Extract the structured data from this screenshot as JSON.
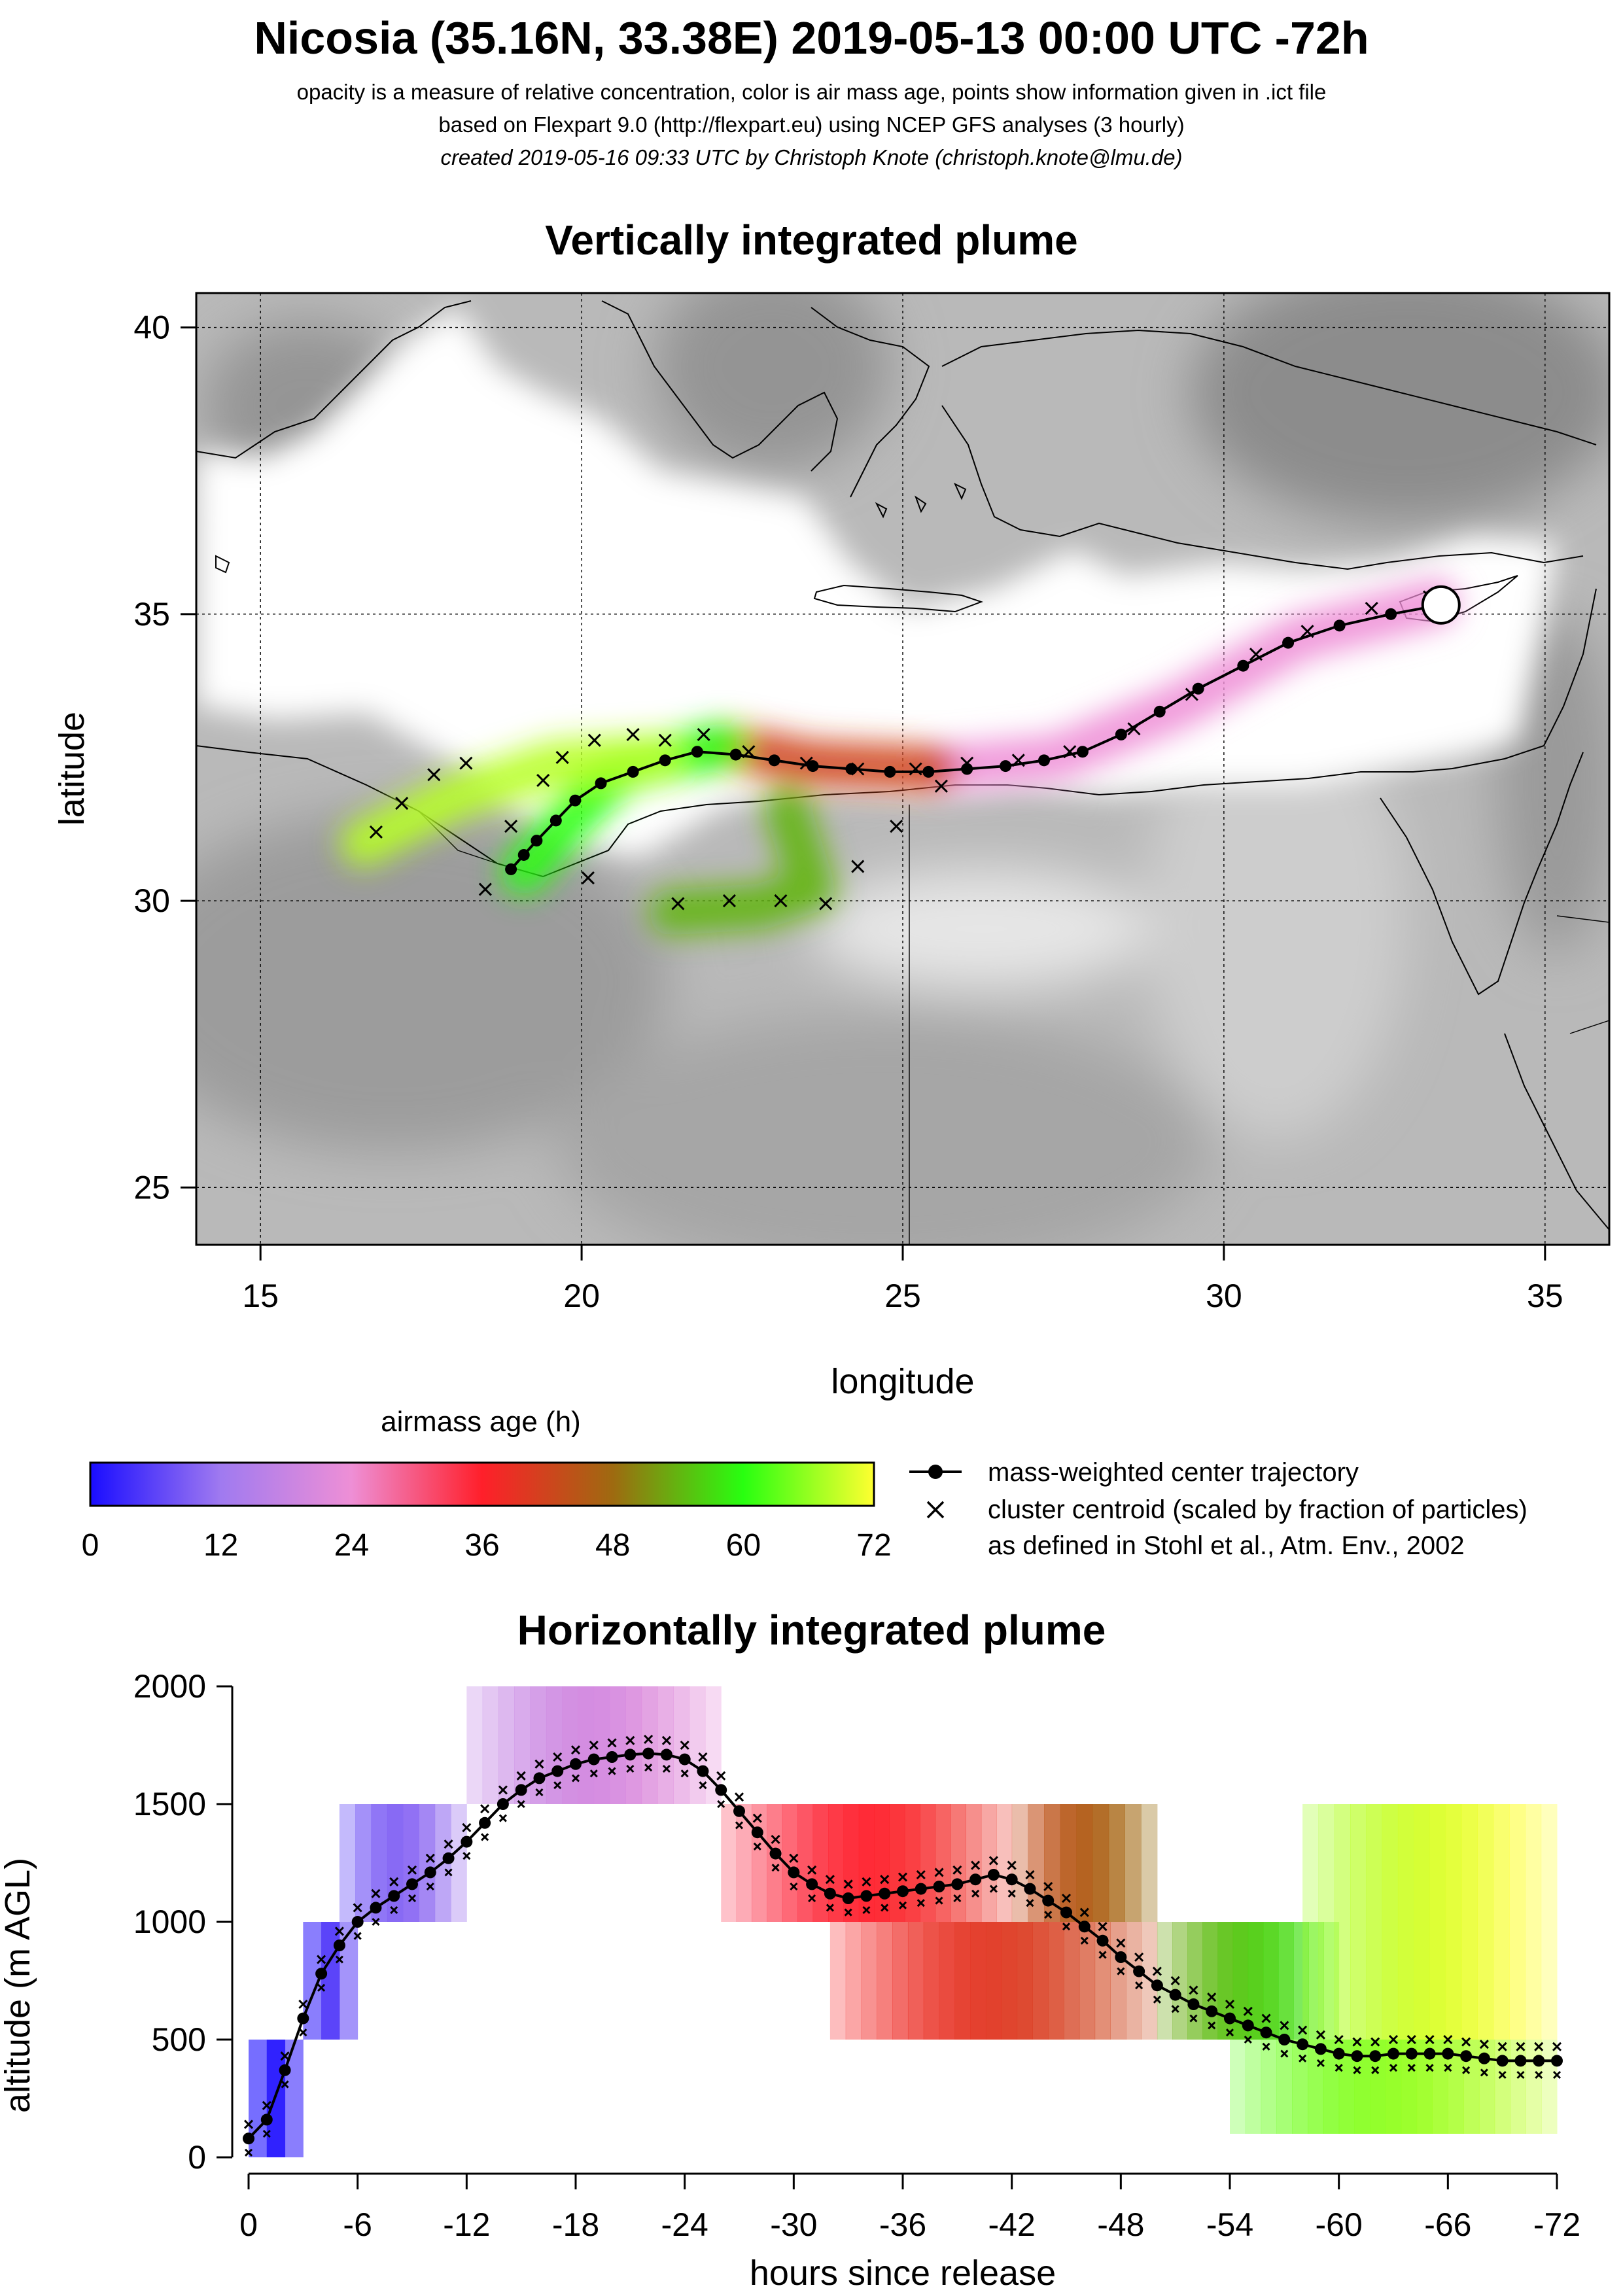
{
  "header": {
    "title": "Nicosia (35.16N, 33.38E) 2019-05-13 00:00 UTC -72h",
    "line1": "opacity is a measure of relative concentration, color is air mass age, points show information given in .ict file",
    "line2": "based on Flexpart 9.0 (http://flexpart.eu) using NCEP GFS analyses (3 hourly)",
    "line3": "created 2019-05-16 09:33 UTC by Christoph Knote (christoph.knote@lmu.de)"
  },
  "legend": {
    "colorbar_title": "airmass age (h)",
    "colorbar_ticks": [
      "0",
      "12",
      "24",
      "36",
      "48",
      "60",
      "72"
    ],
    "colorbar_stops": [
      "#1a0dff",
      "#a07af0",
      "#ee8fd6",
      "#ff1f2a",
      "#9e6a10",
      "#28ff10",
      "#ffff30"
    ],
    "line_label": "mass-weighted center trajectory",
    "cross_label1": "cluster centroid (scaled by fraction of particles)",
    "cross_label2": "as defined in Stohl et al., Atm. Env., 2002"
  },
  "chart_data": [
    {
      "type": "scatter",
      "title": "Vertically integrated plume",
      "xlabel": "longitude",
      "ylabel": "latitude",
      "xlim": [
        14,
        36
      ],
      "ylim": [
        24,
        40.6
      ],
      "xticks": [
        "15",
        "20",
        "25",
        "30",
        "35"
      ],
      "yticks": [
        "25",
        "30",
        "35",
        "40"
      ],
      "grid": true,
      "release_site": {
        "lon": 33.38,
        "lat": 35.16
      },
      "center_trajectory": {
        "lon": [
          33.38,
          32.6,
          31.8,
          31.0,
          30.3,
          29.6,
          29.0,
          28.4,
          27.8,
          27.2,
          26.6,
          26.0,
          25.4,
          24.8,
          24.2,
          23.6,
          23.0,
          22.4,
          21.8,
          21.3,
          20.8,
          20.3,
          19.9,
          19.6,
          19.3,
          19.1,
          18.9
        ],
        "lat": [
          35.16,
          35.0,
          34.8,
          34.5,
          34.1,
          33.7,
          33.3,
          32.9,
          32.6,
          32.45,
          32.35,
          32.3,
          32.25,
          32.25,
          32.3,
          32.35,
          32.45,
          32.55,
          32.6,
          32.45,
          32.25,
          32.05,
          31.75,
          31.4,
          31.05,
          30.8,
          30.55
        ]
      },
      "plume": [
        {
          "lon": [
            33.3,
            31.2,
            29.3,
            27.4,
            25.5
          ],
          "lat": [
            35.2,
            34.6,
            33.4,
            32.5,
            32.3
          ],
          "age": 24
        },
        {
          "lon": [
            25.5,
            23.6,
            22.2
          ],
          "lat": [
            32.3,
            32.4,
            32.7
          ],
          "age": 42
        },
        {
          "lon": [
            23.2,
            23.6,
            22.8,
            21.4
          ],
          "lat": [
            31.6,
            30.2,
            29.9,
            29.8
          ],
          "age": 54
        },
        {
          "lon": [
            22.2,
            20.6,
            19.8,
            19.1
          ],
          "lat": [
            32.7,
            32.3,
            31.4,
            30.5
          ],
          "age": 60
        },
        {
          "lon": [
            21.2,
            19.6,
            18.0,
            16.6
          ],
          "lat": [
            32.5,
            32.4,
            31.8,
            31.0
          ],
          "age": 68
        }
      ],
      "cluster_centroids": {
        "lon": [
          33.2,
          32.3,
          31.3,
          30.5,
          29.5,
          28.6,
          27.6,
          26.8,
          26.0,
          25.2,
          24.3,
          23.5,
          22.6,
          21.9,
          21.3,
          20.8,
          20.2,
          19.7,
          19.4,
          18.9,
          18.5,
          18.2,
          17.7,
          17.2,
          16.8,
          20.1,
          22.3,
          23.1,
          23.8,
          24.3,
          24.9,
          25.6,
          21.5
        ],
        "lat": [
          35.3,
          35.1,
          34.7,
          34.3,
          33.6,
          33.0,
          32.6,
          32.45,
          32.4,
          32.3,
          32.3,
          32.4,
          32.6,
          32.9,
          32.8,
          32.9,
          32.8,
          32.5,
          32.1,
          31.3,
          30.2,
          32.4,
          32.2,
          31.7,
          31.2,
          30.4,
          30.0,
          30.0,
          29.95,
          30.6,
          31.3,
          32.0,
          29.95
        ]
      }
    },
    {
      "type": "scatter",
      "title": "Horizontally integrated plume",
      "xlabel": "hours since release",
      "ylabel": "altitude (m AGL)",
      "xlim": [
        0,
        -72
      ],
      "ylim": [
        0,
        2000
      ],
      "xticks": [
        "0",
        "-6",
        "-12",
        "-18",
        "-24",
        "-30",
        "-36",
        "-42",
        "-48",
        "-54",
        "-60",
        "-66",
        "-72"
      ],
      "yticks": [
        "0",
        "500",
        "1000",
        "1500",
        "2000"
      ],
      "grid": false,
      "center_trajectory": {
        "hours": [
          0,
          -1,
          -2,
          -3,
          -4,
          -5,
          -6,
          -7,
          -8,
          -9,
          -10,
          -11,
          -12,
          -13,
          -14,
          -15,
          -16,
          -17,
          -18,
          -19,
          -20,
          -21,
          -22,
          -23,
          -24,
          -25,
          -26,
          -27,
          -28,
          -29,
          -30,
          -31,
          -32,
          -33,
          -34,
          -35,
          -36,
          -37,
          -38,
          -39,
          -40,
          -41,
          -42,
          -43,
          -44,
          -45,
          -46,
          -47,
          -48,
          -49,
          -50,
          -51,
          -52,
          -53,
          -54,
          -55,
          -56,
          -57,
          -58,
          -59,
          -60,
          -61,
          -62,
          -63,
          -64,
          -65,
          -66,
          -67,
          -68,
          -69,
          -70,
          -71,
          -72
        ],
        "altitude": [
          80,
          160,
          370,
          590,
          780,
          900,
          1000,
          1060,
          1110,
          1160,
          1210,
          1270,
          1340,
          1420,
          1500,
          1560,
          1610,
          1640,
          1670,
          1690,
          1700,
          1710,
          1715,
          1710,
          1690,
          1640,
          1560,
          1470,
          1380,
          1290,
          1210,
          1160,
          1120,
          1100,
          1110,
          1120,
          1130,
          1140,
          1150,
          1160,
          1180,
          1200,
          1180,
          1140,
          1090,
          1040,
          980,
          920,
          850,
          790,
          730,
          690,
          650,
          620,
          590,
          560,
          530,
          500,
          480,
          460,
          440,
          430,
          430,
          440,
          440,
          440,
          440,
          430,
          420,
          410,
          410,
          410,
          410
        ]
      },
      "plume_bands": [
        {
          "h0": 0,
          "h1": 3,
          "z0": 0,
          "z1": 500,
          "age": 2
        },
        {
          "h0": 3,
          "h1": 6,
          "z0": 500,
          "z1": 1000,
          "age": 6
        },
        {
          "h0": 5,
          "h1": 12,
          "z0": 1000,
          "z1": 1500,
          "age": 10
        },
        {
          "h0": 12,
          "h1": 26,
          "z0": 1500,
          "z1": 2000,
          "age": 20
        },
        {
          "h0": 26,
          "h1": 42,
          "z0": 1000,
          "z1": 1500,
          "age": 36
        },
        {
          "h0": 42,
          "h1": 50,
          "z0": 1000,
          "z1": 1500,
          "age": 46
        },
        {
          "h0": 32,
          "h1": 50,
          "z0": 500,
          "z1": 1000,
          "age": 40
        },
        {
          "h0": 50,
          "h1": 60,
          "z0": 500,
          "z1": 1000,
          "age": 56
        },
        {
          "h0": 54,
          "h1": 72,
          "z0": 100,
          "z1": 500,
          "age": 66
        },
        {
          "h0": 58,
          "h1": 72,
          "z0": 500,
          "z1": 1500,
          "age": 70
        }
      ]
    }
  ]
}
